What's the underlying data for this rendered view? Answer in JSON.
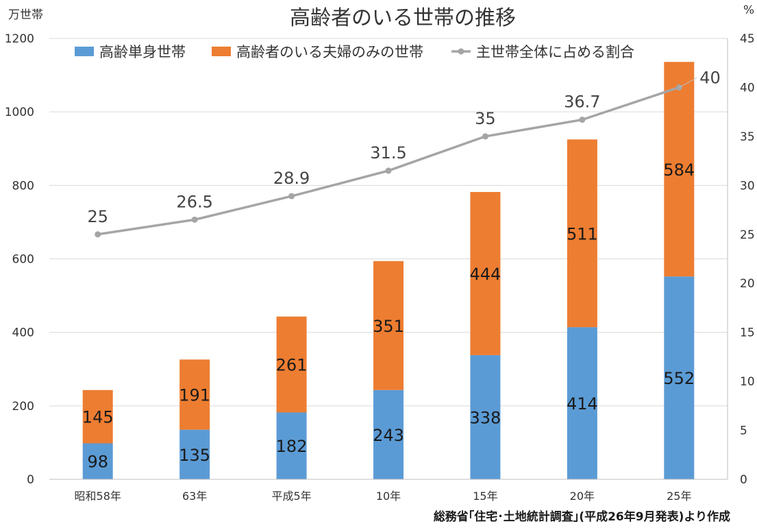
{
  "chart_data": {
    "type": "bar",
    "stacked": true,
    "title": "高齢者のいる世帯の推移",
    "left_axis_unit": "万世帯",
    "right_axis_unit": "%",
    "categories": [
      "昭和58年",
      "63年",
      "平成5年",
      "10年",
      "15年",
      "20年",
      "25年"
    ],
    "ylim": [
      0,
      1200
    ],
    "yticks": [
      0,
      200,
      400,
      600,
      800,
      1000,
      1200
    ],
    "y2lim": [
      0,
      45
    ],
    "y2ticks": [
      0,
      5,
      10,
      15,
      20,
      25,
      30,
      35,
      40,
      45
    ],
    "grid": true,
    "legend_position": "top",
    "series": [
      {
        "name": "高齢単身世帯",
        "type": "bar",
        "axis": "left",
        "color": "#5B9BD5",
        "values": [
          98,
          135,
          182,
          243,
          338,
          414,
          552
        ]
      },
      {
        "name": "高齢者のいる夫婦のみの世帯",
        "type": "bar",
        "axis": "left",
        "color": "#ED7D31",
        "values": [
          145,
          191,
          261,
          351,
          444,
          511,
          584
        ]
      },
      {
        "name": "主世帯全体に占める割合",
        "type": "line",
        "axis": "right",
        "color": "#A5A5A5",
        "values": [
          25,
          26.5,
          28.9,
          31.5,
          35,
          36.7,
          40
        ]
      }
    ],
    "source_note": "総務省｢住宅･土地統計調査｣(平成26年9月発表)より作成"
  }
}
